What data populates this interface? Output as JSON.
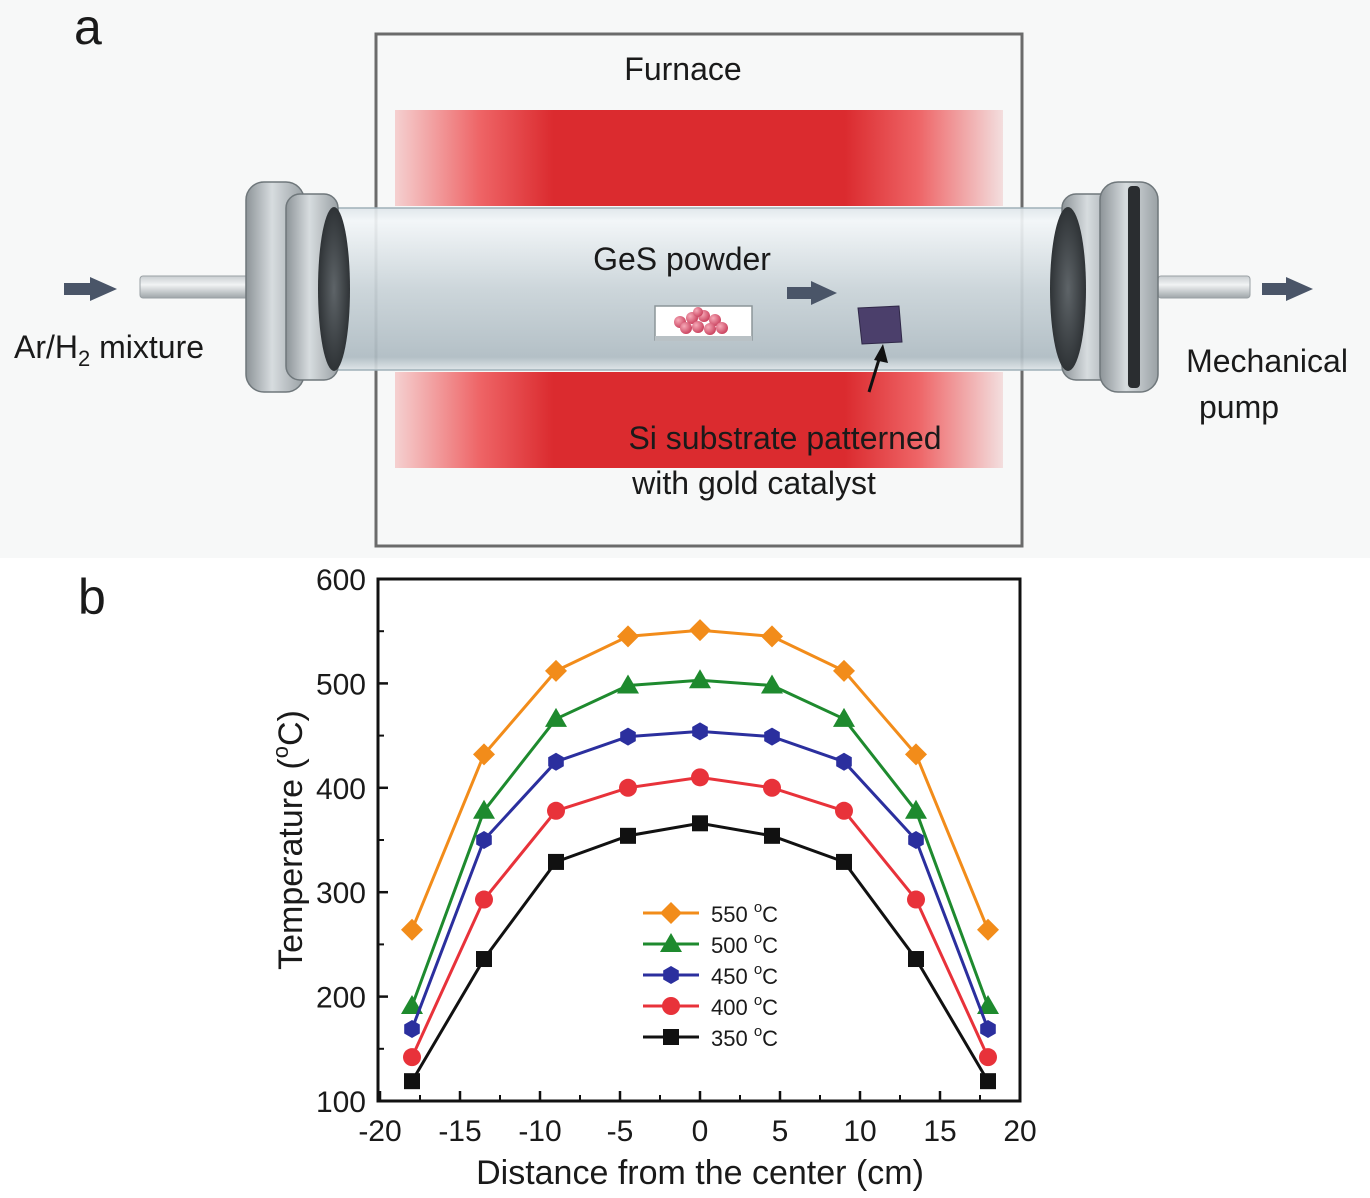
{
  "panel_a": {
    "panel_letter": "a",
    "furnace_label": "Furnace",
    "powder_label": "GeS powder",
    "inlet_label_main": "Ar/H",
    "inlet_label_sub": "2",
    "inlet_label_tail": " mixture",
    "outlet_label_line1": "Mechanical",
    "outlet_label_line2": "pump",
    "substrate_label_line1": "Si substrate patterned",
    "substrate_label_line2": "with gold catalyst",
    "colors": {
      "heater": "#d92a2e",
      "arrow": "#4a5568",
      "substrate": "#4b3f6b",
      "powder": "#e0607a"
    }
  },
  "panel_b": {
    "panel_letter": "b"
  },
  "chart_data": {
    "type": "line",
    "xlabel": "Distance from the center (cm)",
    "ylabel": "Temperature (°C)",
    "ylabel_parts": [
      "Temperature (",
      "o",
      "C)"
    ],
    "xlim": [
      -20,
      20
    ],
    "ylim": [
      100,
      600
    ],
    "xticks": [
      -20,
      -15,
      -10,
      -5,
      0,
      5,
      10,
      15,
      20
    ],
    "yticks": [
      100,
      200,
      300,
      400,
      500,
      600
    ],
    "legend_position": "lower-center",
    "x": [
      -18,
      -13.5,
      -9,
      -4.5,
      0,
      4.5,
      9,
      13.5,
      18
    ],
    "series": [
      {
        "name": "550 °C",
        "legend_num": "550 ",
        "legend_unit": "C",
        "color": "#f28c1a",
        "marker": "diamond",
        "values": [
          264,
          432,
          512,
          545,
          551,
          545,
          512,
          432,
          264
        ]
      },
      {
        "name": "500 °C",
        "legend_num": "500 ",
        "legend_unit": "C",
        "color": "#1e8a2e",
        "marker": "triangle",
        "values": [
          191,
          378,
          466,
          498,
          503,
          498,
          466,
          378,
          191
        ]
      },
      {
        "name": "450 °C",
        "legend_num": "450 ",
        "legend_unit": "C",
        "color": "#2b2f9e",
        "marker": "hexagon",
        "values": [
          169,
          350,
          425,
          449,
          454,
          449,
          425,
          350,
          169
        ]
      },
      {
        "name": "400 °C",
        "legend_num": "400 ",
        "legend_unit": "C",
        "color": "#e8323a",
        "marker": "circle",
        "values": [
          142,
          293,
          378,
          400,
          410,
          400,
          378,
          293,
          142
        ]
      },
      {
        "name": "350 °C",
        "legend_num": "350 ",
        "legend_unit": "C",
        "color": "#111111",
        "marker": "square",
        "values": [
          119,
          236,
          329,
          354,
          366,
          354,
          329,
          236,
          119
        ]
      }
    ]
  }
}
